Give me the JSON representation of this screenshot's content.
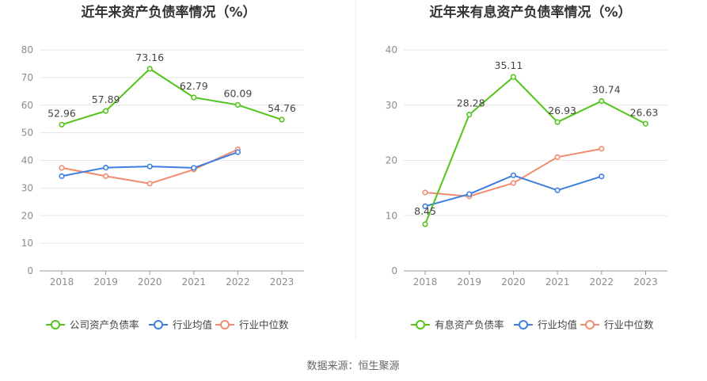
{
  "chart_data": [
    {
      "type": "line",
      "title": "近年来资产负债率情况（%）",
      "categories": [
        "2018",
        "2019",
        "2020",
        "2021",
        "2022",
        "2023"
      ],
      "ylim": [
        0,
        80
      ],
      "yticks": [
        0,
        10,
        20,
        30,
        40,
        50,
        60,
        70,
        80
      ],
      "grid": true,
      "legend_position": "bottom",
      "series": [
        {
          "name": "公司资产负债率",
          "color": "#52c41a",
          "values": [
            52.96,
            57.89,
            73.16,
            62.79,
            60.09,
            54.76
          ],
          "labels": [
            "52.96",
            "57.89",
            "73.16",
            "62.79",
            "60.09",
            "54.76"
          ]
        },
        {
          "name": "行业均值",
          "color": "#3d7ee0",
          "values": [
            34.3,
            37.4,
            37.8,
            37.3,
            43.0,
            null
          ],
          "labels": []
        },
        {
          "name": "行业中位数",
          "color": "#f28c6e",
          "values": [
            37.3,
            34.3,
            31.6,
            36.7,
            44.0,
            null
          ],
          "labels": []
        }
      ]
    },
    {
      "type": "line",
      "title": "近年来有息资产负债率情况（%）",
      "categories": [
        "2018",
        "2019",
        "2020",
        "2021",
        "2022",
        "2023"
      ],
      "ylim": [
        0,
        40
      ],
      "yticks": [
        0,
        10,
        20,
        30,
        40
      ],
      "grid": true,
      "legend_position": "bottom",
      "series": [
        {
          "name": "有息资产负债率",
          "color": "#52c41a",
          "values": [
            8.45,
            28.28,
            35.11,
            26.93,
            30.74,
            26.63
          ],
          "labels": [
            "8.45",
            "28.28",
            "35.11",
            "26.93",
            "30.74",
            "26.63"
          ]
        },
        {
          "name": "行业均值",
          "color": "#3d7ee0",
          "values": [
            11.7,
            13.9,
            17.3,
            14.6,
            17.1,
            null
          ],
          "labels": []
        },
        {
          "name": "行业中位数",
          "color": "#f28c6e",
          "values": [
            14.2,
            13.5,
            15.9,
            20.6,
            22.1,
            null
          ],
          "labels": []
        }
      ]
    }
  ],
  "footer": {
    "source": "数据来源：恒生聚源"
  }
}
